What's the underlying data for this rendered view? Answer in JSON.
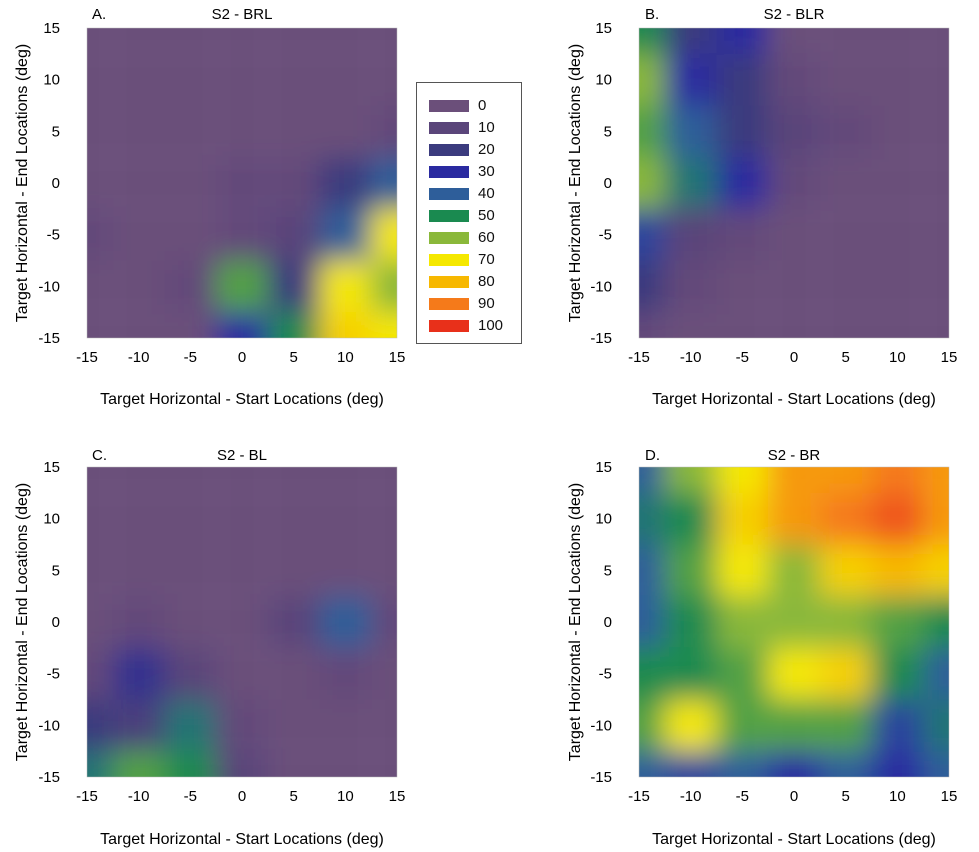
{
  "legend": {
    "levels": [
      0,
      10,
      20,
      30,
      40,
      50,
      60,
      70,
      80,
      90,
      100
    ],
    "labels": [
      "0",
      "10",
      "20",
      "30",
      "40",
      "50",
      "60",
      "70",
      "80",
      "90",
      "100"
    ],
    "colors": [
      "#6b4f7a",
      "#5a457a",
      "#3b3b7e",
      "#2a2aa0",
      "#2e5e9a",
      "#1a8a50",
      "#8ab83a",
      "#f5e800",
      "#f7b800",
      "#f57a1a",
      "#e8301a"
    ]
  },
  "chart_data": [
    {
      "type": "heatmap",
      "panel": "A.",
      "title": "S2 - BRL",
      "xlabel": "Target Horizontal - Start Locations (deg)",
      "ylabel": "Target Horizontal - End Locations (deg)",
      "x": [
        -15,
        -10,
        -5,
        0,
        5,
        10,
        15
      ],
      "y": [
        15,
        10,
        5,
        0,
        -5,
        -10,
        -15
      ],
      "z": [
        [
          0,
          0,
          0,
          0,
          0,
          0,
          0
        ],
        [
          0,
          0,
          0,
          0,
          0,
          0,
          0
        ],
        [
          0,
          0,
          0,
          0,
          0,
          0,
          5
        ],
        [
          0,
          0,
          0,
          5,
          5,
          20,
          40
        ],
        [
          5,
          0,
          0,
          5,
          10,
          40,
          70
        ],
        [
          0,
          0,
          5,
          55,
          20,
          70,
          60
        ],
        [
          0,
          0,
          0,
          30,
          50,
          75,
          70
        ]
      ],
      "xlim": [
        -15,
        15
      ],
      "ylim": [
        -15,
        15
      ],
      "xticks": [
        "-15",
        "-10",
        "-5",
        "0",
        "5",
        "10",
        "15"
      ],
      "yticks": [
        "15",
        "10",
        "5",
        "0",
        "-5",
        "-10",
        "-15"
      ]
    },
    {
      "type": "heatmap",
      "panel": "B.",
      "title": "S2 - BLR",
      "xlabel": "Target Horizontal - Start Locations (deg)",
      "ylabel": "Target Horizontal - End Locations (deg)",
      "x": [
        -15,
        -10,
        -5,
        0,
        5,
        10,
        15
      ],
      "y": [
        15,
        10,
        5,
        0,
        -5,
        -10,
        -15
      ],
      "z": [
        [
          50,
          20,
          30,
          0,
          0,
          0,
          0
        ],
        [
          60,
          30,
          20,
          5,
          0,
          0,
          0
        ],
        [
          55,
          40,
          20,
          10,
          5,
          0,
          0
        ],
        [
          60,
          45,
          30,
          5,
          0,
          0,
          0
        ],
        [
          35,
          10,
          5,
          0,
          0,
          0,
          0
        ],
        [
          20,
          5,
          0,
          0,
          0,
          0,
          0
        ],
        [
          5,
          0,
          0,
          0,
          0,
          0,
          0
        ]
      ],
      "xlim": [
        -15,
        15
      ],
      "ylim": [
        -15,
        15
      ],
      "xticks": [
        "-15",
        "-10",
        "-5",
        "0",
        "5",
        "10",
        "15"
      ],
      "yticks": [
        "15",
        "10",
        "5",
        "0",
        "-5",
        "-10",
        "-15"
      ]
    },
    {
      "type": "heatmap",
      "panel": "C.",
      "title": "S2 - BL",
      "xlabel": "Target Horizontal - Start Locations (deg)",
      "ylabel": "Target Horizontal - End Locations (deg)",
      "x": [
        -15,
        -10,
        -5,
        0,
        5,
        10,
        15
      ],
      "y": [
        15,
        10,
        5,
        0,
        -5,
        -10,
        -15
      ],
      "z": [
        [
          0,
          0,
          0,
          0,
          0,
          0,
          0
        ],
        [
          0,
          0,
          0,
          0,
          0,
          0,
          0
        ],
        [
          0,
          0,
          0,
          0,
          0,
          0,
          0
        ],
        [
          0,
          5,
          0,
          0,
          10,
          40,
          5
        ],
        [
          5,
          25,
          10,
          0,
          0,
          5,
          0
        ],
        [
          20,
          15,
          45,
          5,
          0,
          0,
          0
        ],
        [
          45,
          55,
          50,
          10,
          0,
          0,
          0
        ]
      ],
      "xlim": [
        -15,
        15
      ],
      "ylim": [
        -15,
        15
      ],
      "xticks": [
        "-15",
        "-10",
        "-5",
        "0",
        "5",
        "10",
        "15"
      ],
      "yticks": [
        "15",
        "10",
        "5",
        "0",
        "-5",
        "-10",
        "-15"
      ]
    },
    {
      "type": "heatmap",
      "panel": "D.",
      "title": "S2 - BR",
      "xlabel": "Target Horizontal - Start Locations (deg)",
      "ylabel": "Target Horizontal - End Locations (deg)",
      "x": [
        -15,
        -10,
        -5,
        0,
        5,
        10,
        15
      ],
      "y": [
        15,
        10,
        5,
        0,
        -5,
        -10,
        -15
      ],
      "z": [
        [
          40,
          60,
          70,
          85,
          85,
          90,
          85
        ],
        [
          45,
          50,
          75,
          85,
          90,
          95,
          85
        ],
        [
          40,
          55,
          70,
          60,
          75,
          80,
          75
        ],
        [
          40,
          50,
          60,
          60,
          60,
          55,
          50
        ],
        [
          50,
          50,
          55,
          70,
          75,
          50,
          40
        ],
        [
          55,
          70,
          55,
          55,
          55,
          35,
          45
        ],
        [
          40,
          35,
          40,
          30,
          40,
          30,
          40
        ]
      ],
      "xlim": [
        -15,
        15
      ],
      "ylim": [
        -15,
        15
      ],
      "xticks": [
        "-15",
        "-10",
        "-5",
        "0",
        "5",
        "10",
        "15"
      ],
      "yticks": [
        "15",
        "10",
        "5",
        "0",
        "-5",
        "-10",
        "-15"
      ]
    }
  ]
}
